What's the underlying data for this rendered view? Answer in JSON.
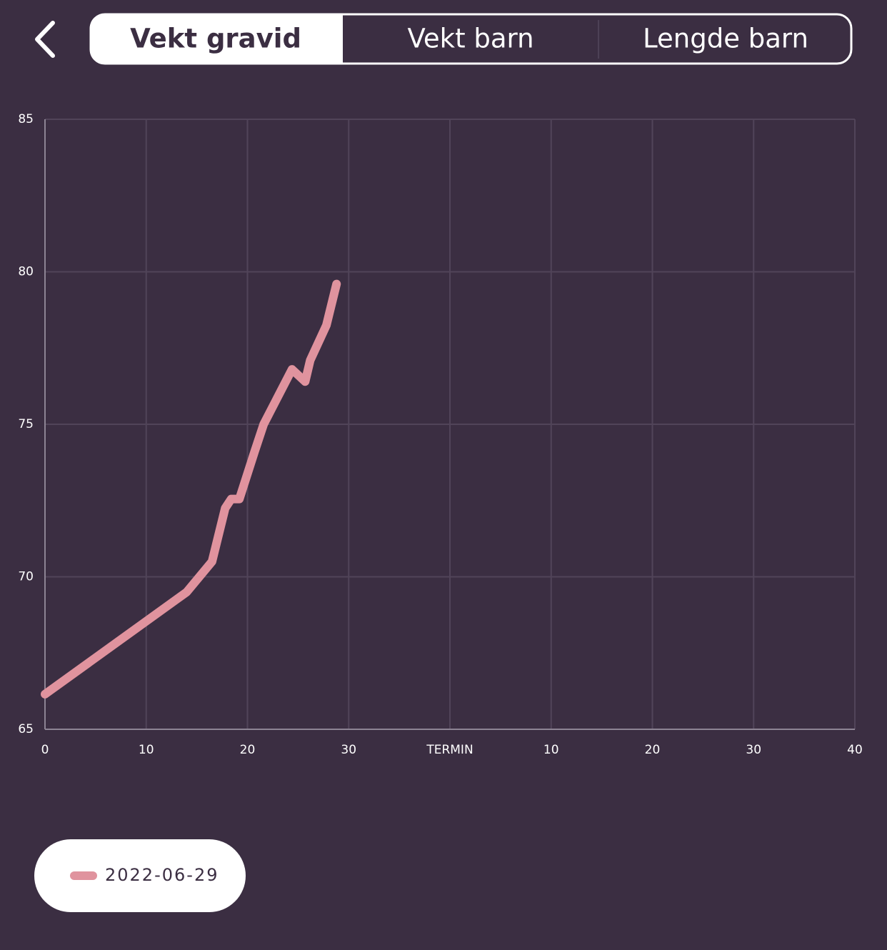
{
  "tabs": [
    "Vekt gravid",
    "Vekt barn",
    "Lengde barn"
  ],
  "chart_data": {
    "type": "line",
    "series": [
      {
        "name": "2022-06-29",
        "color": "#e0939e",
        "x": [
          0,
          14.0,
          16.5,
          17.8,
          18.4,
          19.2,
          20.7,
          21.6,
          24.4,
          25.7,
          26.2,
          27.8,
          28.8
        ],
        "values": [
          66.15,
          69.5,
          70.5,
          72.25,
          72.55,
          72.55,
          74.1,
          75.0,
          76.8,
          76.4,
          77.1,
          78.25,
          79.6
        ]
      }
    ],
    "xlim": [
      0,
      80
    ],
    "xticks": [
      0,
      10,
      20,
      30,
      {
        "value": 40,
        "label": "TERMIN"
      },
      {
        "value": 50,
        "label": "10"
      },
      {
        "value": 60,
        "label": "20"
      },
      {
        "value": 70,
        "label": "30"
      },
      {
        "value": 80,
        "label": "40"
      }
    ],
    "ylim": [
      65,
      85
    ],
    "yticks": [
      65,
      70,
      75,
      80,
      85
    ],
    "grid": true
  }
}
